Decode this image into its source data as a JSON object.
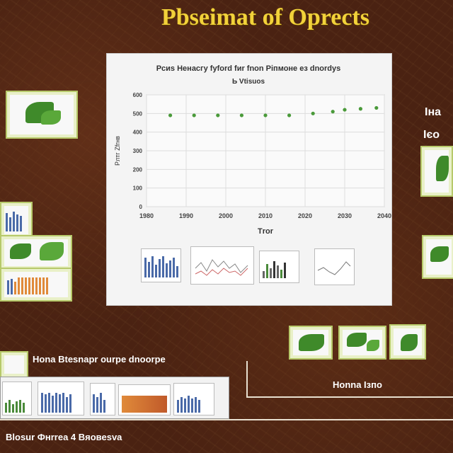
{
  "page": {
    "title": "Pbseimat of Oprects",
    "caption_bottom_left": "Ноnа Вtesnapr ourpe dnoorpe",
    "caption_right": "Ноnnа Ізпо",
    "caption_footer": "Вlosur Фнrrea 4  Вяовеsva",
    "label_right_1": "Іна",
    "label_right_2": "Ієо",
    "accent_color": "#f2d23a",
    "background_color": "#4a2212"
  },
  "chart_data": {
    "type": "scatter",
    "title": "Рсиs Ненасгу fуfоrd fиr fnon Ріпмоне ез dnordуs",
    "subtitle": "Ь Vtisuos",
    "xlabel": "Тrоr",
    "ylabel": "Рлтг Zfrнв",
    "x_ticks": [
      "1980",
      "1990",
      "2000",
      "2010",
      "2020",
      "2030",
      "2040"
    ],
    "y_ticks": [
      "0",
      "100",
      "200",
      "300",
      "400",
      "500",
      "600"
    ],
    "xlim": [
      1980,
      2040
    ],
    "ylim": [
      0,
      600
    ],
    "grid": true,
    "point_color": "#4a9a3a",
    "x": [
      1986,
      1992,
      1998,
      2004,
      2010,
      2016,
      2022,
      2027,
      2030,
      2034,
      2038
    ],
    "y": [
      490,
      490,
      490,
      490,
      490,
      490,
      500,
      510,
      520,
      525,
      530
    ]
  }
}
